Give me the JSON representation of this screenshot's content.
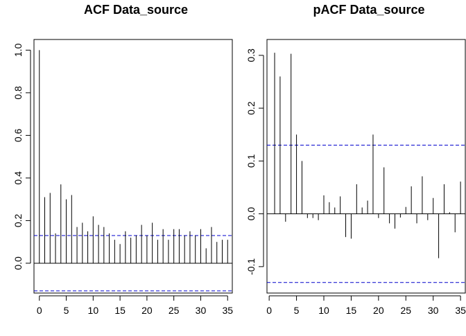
{
  "chart_data": [
    {
      "type": "bar",
      "title": "ACF Data_source",
      "xlim": [
        -1,
        36
      ],
      "ylim": [
        -0.14,
        1.05
      ],
      "x_ticks": [
        0,
        5,
        10,
        15,
        20,
        25,
        30,
        35
      ],
      "y_ticks": [
        0.0,
        0.2,
        0.4,
        0.6,
        0.8,
        1.0
      ],
      "y_tick_labels": [
        "0.0",
        "0.2",
        "0.4",
        "0.6",
        "0.8",
        "1.0"
      ],
      "confidence_bound": 0.13,
      "zero_line": true,
      "lags": [
        0,
        1,
        2,
        3,
        4,
        5,
        6,
        7,
        8,
        9,
        10,
        11,
        12,
        13,
        14,
        15,
        16,
        17,
        18,
        19,
        20,
        21,
        22,
        23,
        24,
        25,
        26,
        27,
        28,
        29,
        30,
        31,
        32,
        33,
        34,
        35
      ],
      "values": [
        1.0,
        0.31,
        0.33,
        0.14,
        0.37,
        0.3,
        0.32,
        0.17,
        0.19,
        0.15,
        0.22,
        0.18,
        0.17,
        0.14,
        0.11,
        0.09,
        0.15,
        0.12,
        0.13,
        0.18,
        0.13,
        0.19,
        0.11,
        0.16,
        0.11,
        0.16,
        0.16,
        0.13,
        0.15,
        0.13,
        0.16,
        0.07,
        0.17,
        0.1,
        0.11,
        0.11
      ],
      "line_color": "#000000",
      "bound_color": "#0000cc"
    },
    {
      "type": "bar",
      "title": "pACF Data_source",
      "xlim": [
        -0.4,
        36
      ],
      "ylim": [
        -0.15,
        0.33
      ],
      "x_ticks": [
        0,
        5,
        10,
        15,
        20,
        25,
        30,
        35
      ],
      "y_ticks": [
        -0.1,
        0.0,
        0.1,
        0.2,
        0.3
      ],
      "y_tick_labels": [
        "-0.1",
        "0.0",
        "0.1",
        "0.2",
        "0.3"
      ],
      "confidence_bound": 0.13,
      "zero_line": true,
      "lags": [
        1,
        2,
        3,
        4,
        5,
        6,
        7,
        8,
        9,
        10,
        11,
        12,
        13,
        14,
        15,
        16,
        17,
        18,
        19,
        20,
        21,
        22,
        23,
        24,
        25,
        26,
        27,
        28,
        29,
        30,
        31,
        32,
        33,
        34,
        35
      ],
      "values": [
        0.305,
        0.26,
        -0.015,
        0.303,
        0.15,
        0.1,
        -0.008,
        -0.008,
        -0.012,
        0.035,
        0.022,
        0.012,
        0.033,
        -0.044,
        -0.047,
        0.056,
        0.012,
        0.025,
        0.15,
        -0.008,
        0.088,
        -0.018,
        -0.028,
        -0.007,
        0.013,
        0.052,
        -0.018,
        0.071,
        -0.012,
        0.03,
        -0.084,
        0.056,
        0.003,
        -0.035,
        0.061
      ],
      "line_color": "#000000",
      "bound_color": "#0000cc"
    }
  ]
}
